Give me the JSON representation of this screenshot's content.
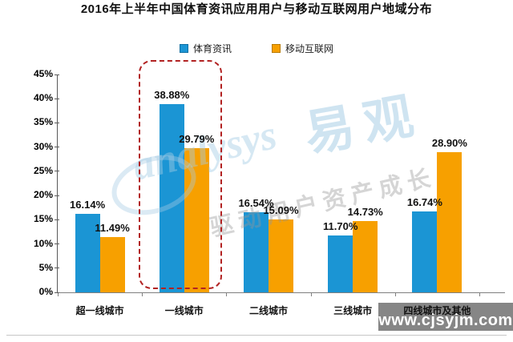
{
  "title": "2016年上半年中国体育资讯应用用户与移动互联网用户地域分布",
  "legend": [
    {
      "label": "体育资讯",
      "color": "#1b95d4",
      "border": "#0f6fa3"
    },
    {
      "label": "移动互联网",
      "color": "#f7a000",
      "border": "#b87a00"
    }
  ],
  "chart_data": {
    "type": "bar",
    "title": "2016年上半年中国体育资讯应用用户与移动互联网用户地域分布",
    "categories": [
      "超一线城市",
      "一线城市",
      "二线城市",
      "三线城市",
      "四线城市及其他"
    ],
    "series": [
      {
        "name": "体育资讯",
        "color": "#1b95d4",
        "values": [
          16.14,
          38.88,
          16.54,
          11.7,
          16.74
        ],
        "labels": [
          "16.14%",
          "38.88%",
          "16.54%",
          "11.70%",
          "16.74%"
        ]
      },
      {
        "name": "移动互联网",
        "color": "#f7a000",
        "values": [
          11.49,
          29.79,
          15.09,
          14.73,
          28.9
        ],
        "labels": [
          "11.49%",
          "29.79%",
          "15.09%",
          "14.73%",
          "28.90%"
        ]
      }
    ],
    "xlabel": "",
    "ylabel": "",
    "ylim": [
      0,
      45
    ],
    "yticks": [
      "0%",
      "5%",
      "10%",
      "15%",
      "20%",
      "25%",
      "30%",
      "35%",
      "40%",
      "45%"
    ],
    "grid": false,
    "legend_position": "top",
    "data_labels": true,
    "highlight_category": "一线城市",
    "highlight_style": "red-dashed-rounded-box"
  },
  "watermark": {
    "logo_script": "analysys",
    "logo_text": "易观",
    "slogan": "驱动用户资产成长",
    "site": "www.cjsyjm.com"
  }
}
